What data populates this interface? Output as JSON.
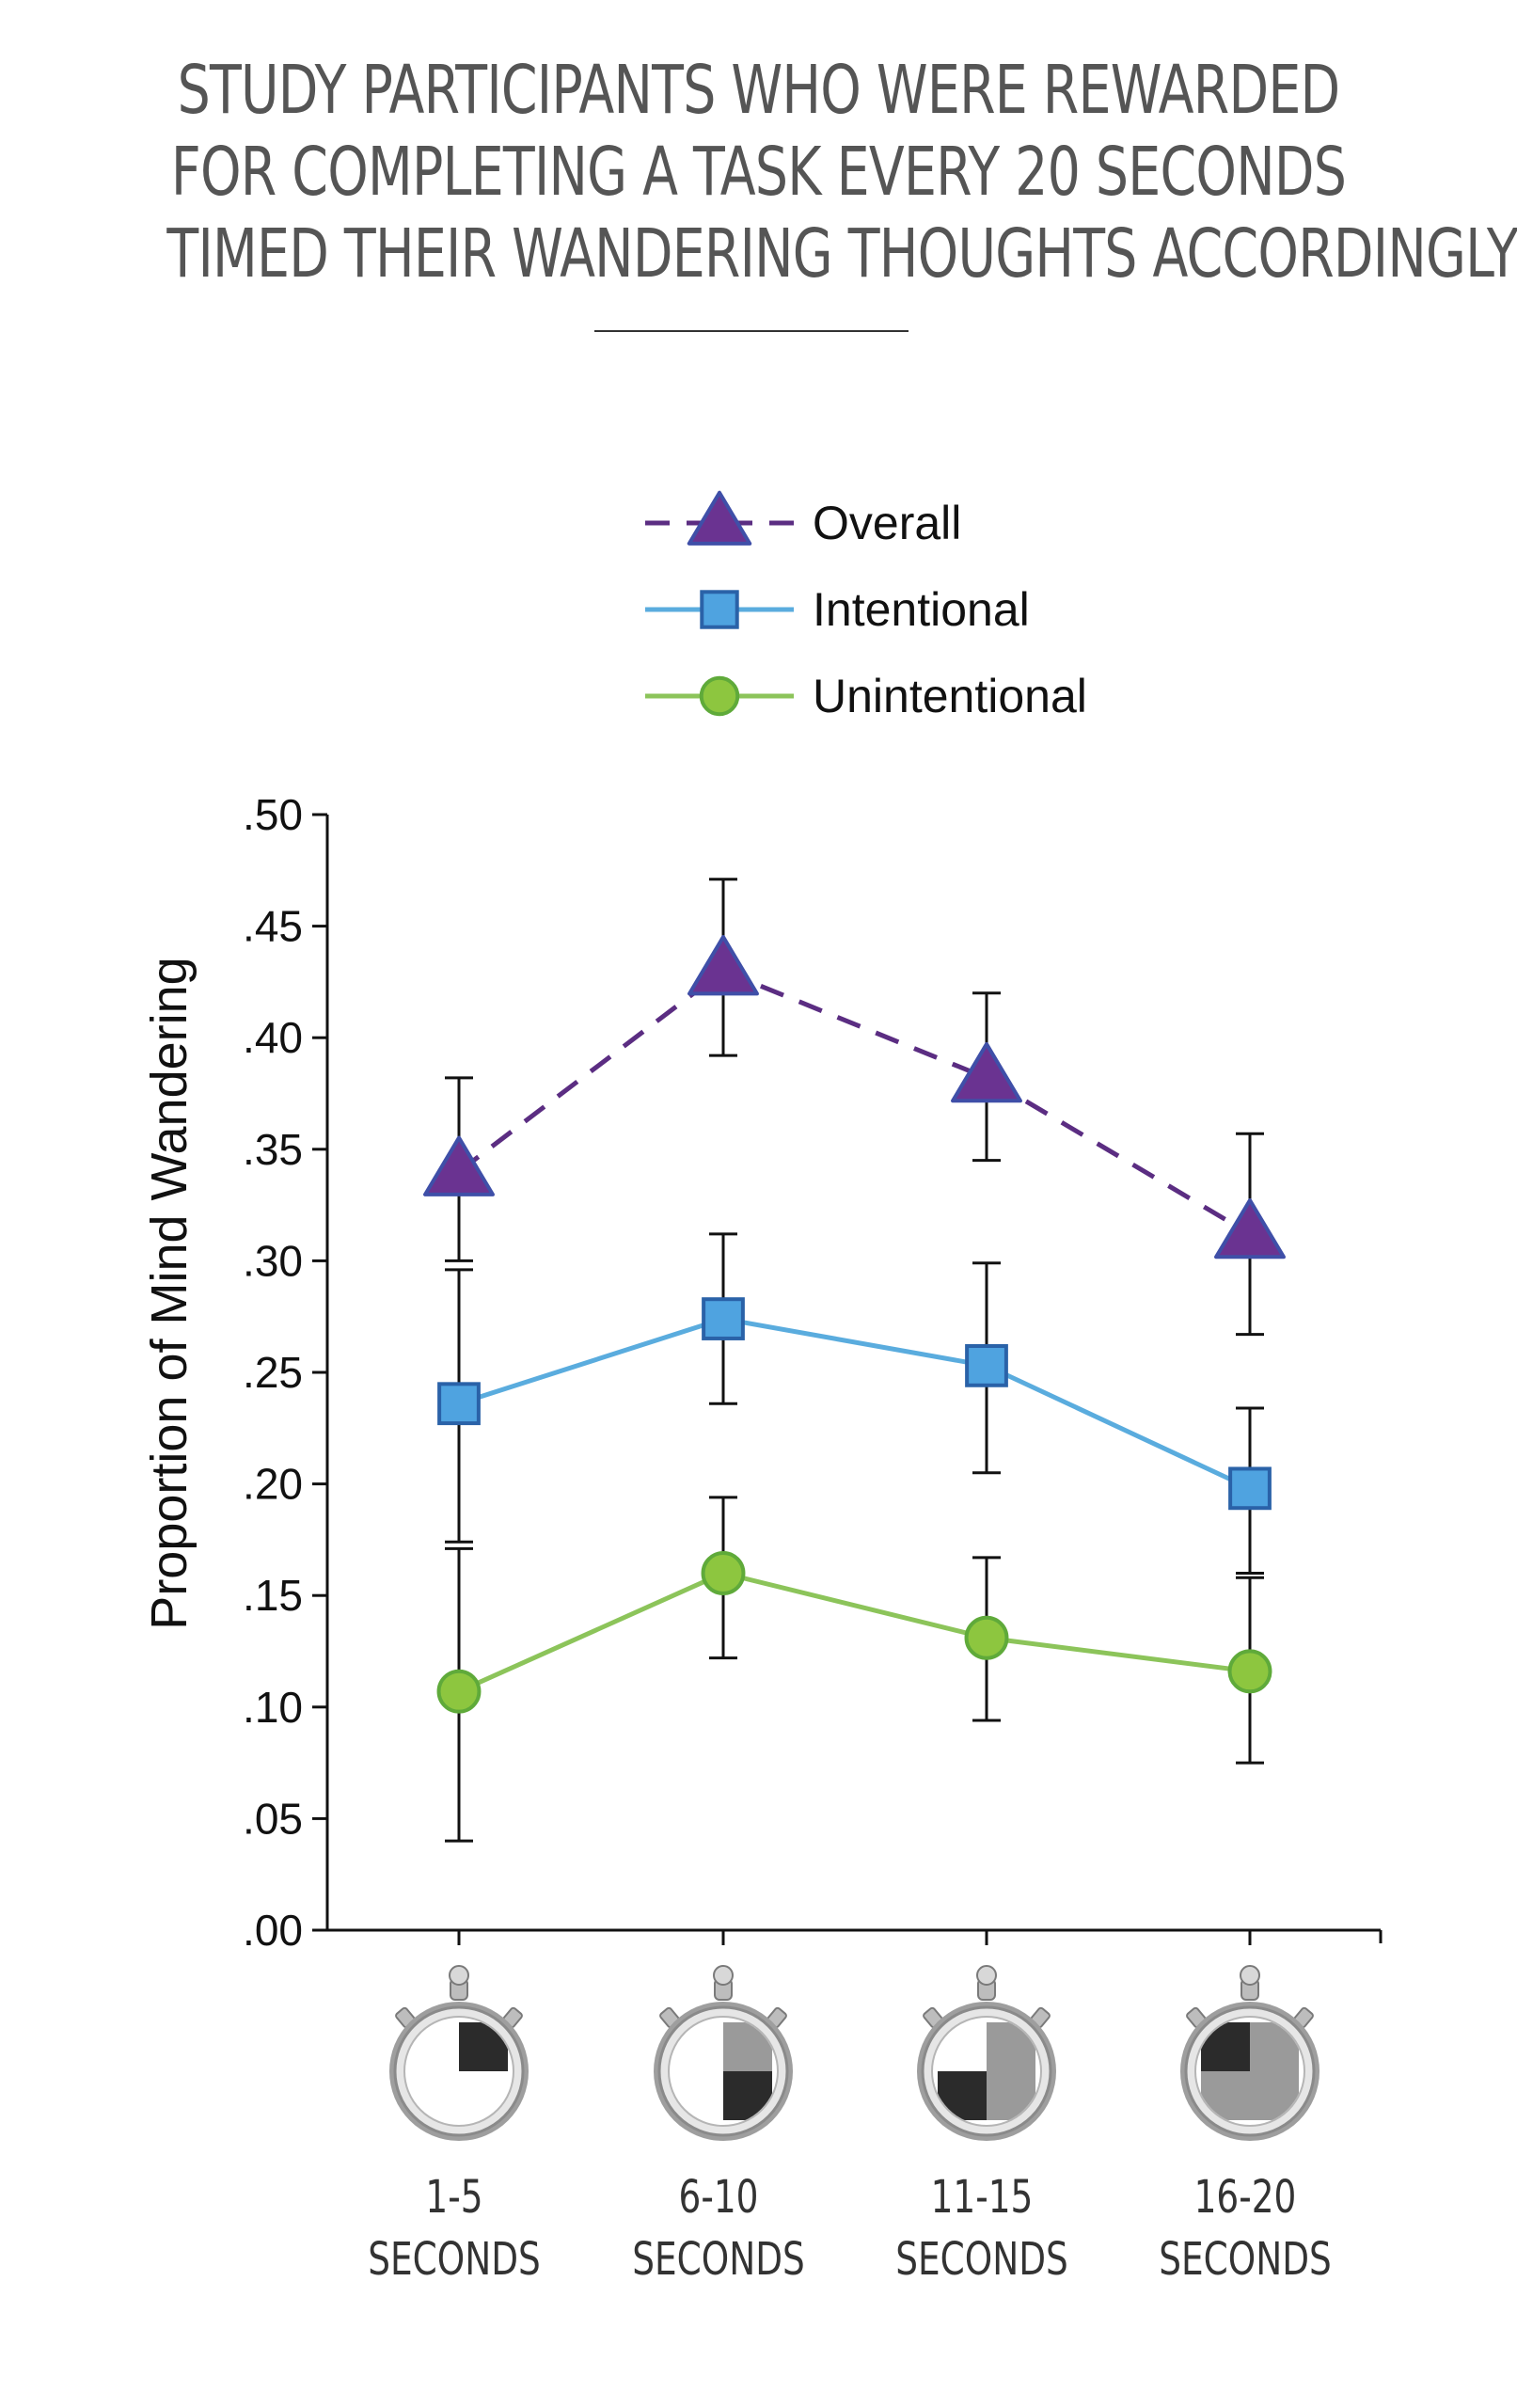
{
  "title_lines": [
    "STUDY PARTICIPANTS WHO WERE  REWARDED",
    "FOR COMPLETING A TASK EVERY 20 SECONDS",
    "TIMED THEIR WANDERING THOUGHTS ACCORDINGLY"
  ],
  "chart_data": {
    "type": "line",
    "title": "STUDY PARTICIPANTS WHO WERE REWARDED FOR COMPLETING A TASK EVERY 20 SECONDS TIMED THEIR WANDERING THOUGHTS ACCORDINGLY",
    "xlabel": "",
    "ylabel": "Proportion of Mind Wandering",
    "ylim": [
      0,
      0.5
    ],
    "yticks": [
      ".00",
      ".05",
      ".10",
      ".15",
      ".20",
      ".25",
      ".30",
      ".35",
      ".40",
      ".45",
      ".50"
    ],
    "categories": [
      {
        "top": "1-5",
        "bottom": "SECONDS",
        "elapsed_fraction": 0.25
      },
      {
        "top": "6-10",
        "bottom": "SECONDS",
        "elapsed_fraction": 0.5
      },
      {
        "top": "11-15",
        "bottom": "SECONDS",
        "elapsed_fraction": 0.75
      },
      {
        "top": "16-20",
        "bottom": "SECONDS",
        "elapsed_fraction": 1.0
      }
    ],
    "legend_position": "top",
    "grid": false,
    "series": [
      {
        "name": "Overall",
        "marker": "triangle",
        "line_style": "dashed",
        "color": "#5b2d82",
        "marker_fill": "#6a3391",
        "marker_stroke": "#3f4fa8",
        "values": [
          0.34,
          0.43,
          0.382,
          0.312
        ],
        "err_low": [
          0.3,
          0.392,
          0.345,
          0.267
        ],
        "err_high": [
          0.382,
          0.471,
          0.42,
          0.357
        ]
      },
      {
        "name": "Intentional",
        "marker": "square",
        "line_style": "solid",
        "color": "#5aacde",
        "marker_fill": "#4fa3e0",
        "marker_stroke": "#2a62a8",
        "values": [
          0.236,
          0.274,
          0.253,
          0.198
        ],
        "err_low": [
          0.174,
          0.236,
          0.205,
          0.16
        ],
        "err_high": [
          0.296,
          0.312,
          0.299,
          0.234
        ]
      },
      {
        "name": "Unintentional",
        "marker": "circle",
        "line_style": "solid",
        "color": "#8cc45a",
        "marker_fill": "#8dc63f",
        "marker_stroke": "#5faa3a",
        "values": [
          0.107,
          0.16,
          0.131,
          0.116
        ],
        "err_low": [
          0.04,
          0.122,
          0.094,
          0.075
        ],
        "err_high": [
          0.171,
          0.194,
          0.167,
          0.158
        ]
      }
    ]
  }
}
